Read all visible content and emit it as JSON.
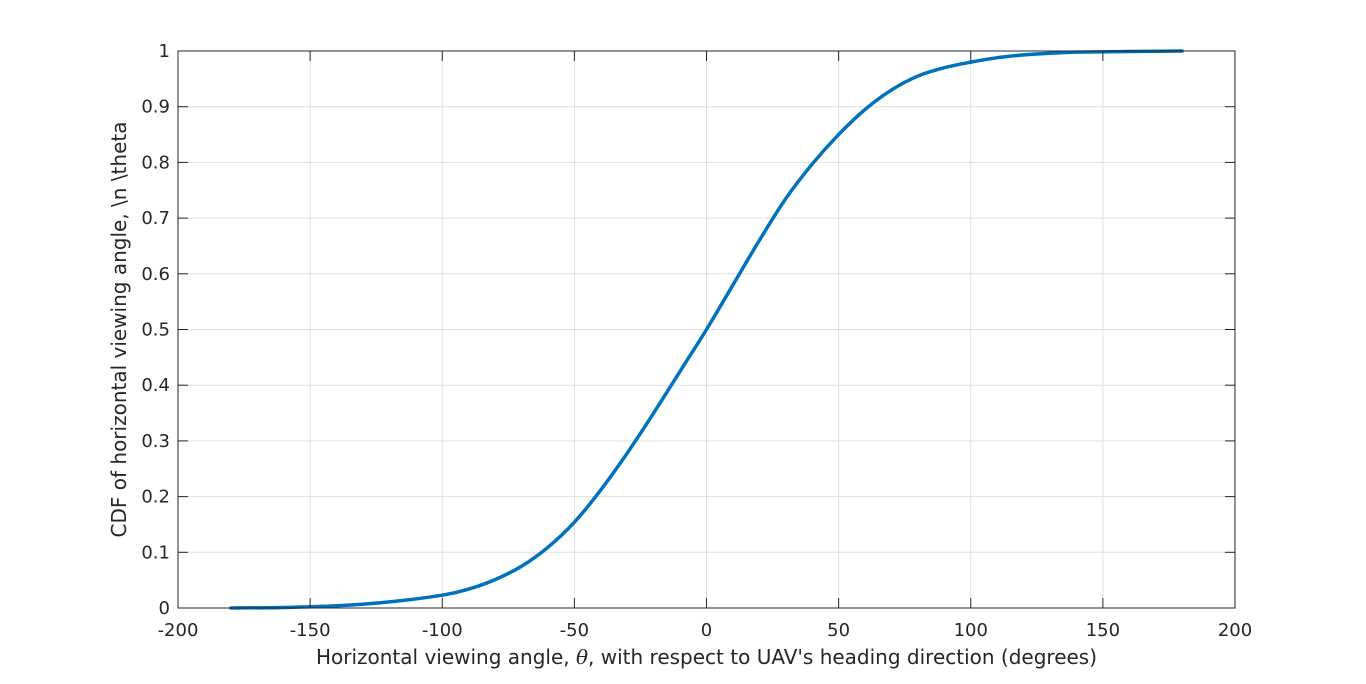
{
  "chart_data": {
    "type": "line",
    "title": "",
    "xlabel_parts": [
      "Horizontal viewing angle, ",
      "θ",
      ", with respect to UAV's heading direction (degrees)"
    ],
    "ylabel": "CDF of horizontal viewing angle, \\n \\theta",
    "xlim": [
      -200,
      200
    ],
    "ylim": [
      0,
      1
    ],
    "xticks": [
      -200,
      -150,
      -100,
      -50,
      0,
      50,
      100,
      150,
      200
    ],
    "yticks": [
      0,
      0.1,
      0.2,
      0.3,
      0.4,
      0.5,
      0.6,
      0.7,
      0.8,
      0.9,
      1
    ],
    "grid": true,
    "legend": "none",
    "series": [
      {
        "color": "#0072bd",
        "x": [
          -180,
          -160,
          -140,
          -120,
          -100,
          -90,
          -80,
          -70,
          -60,
          -50,
          -40,
          -30,
          -20,
          -10,
          0,
          10,
          20,
          30,
          40,
          50,
          60,
          70,
          80,
          90,
          100,
          110,
          120,
          130,
          140,
          160,
          180
        ],
        "y": [
          0.0,
          0.001,
          0.004,
          0.011,
          0.023,
          0.034,
          0.051,
          0.075,
          0.109,
          0.154,
          0.212,
          0.278,
          0.35,
          0.425,
          0.5,
          0.58,
          0.66,
          0.735,
          0.797,
          0.85,
          0.895,
          0.93,
          0.955,
          0.97,
          0.98,
          0.988,
          0.993,
          0.996,
          0.998,
          0.999,
          1.0
        ]
      }
    ]
  }
}
